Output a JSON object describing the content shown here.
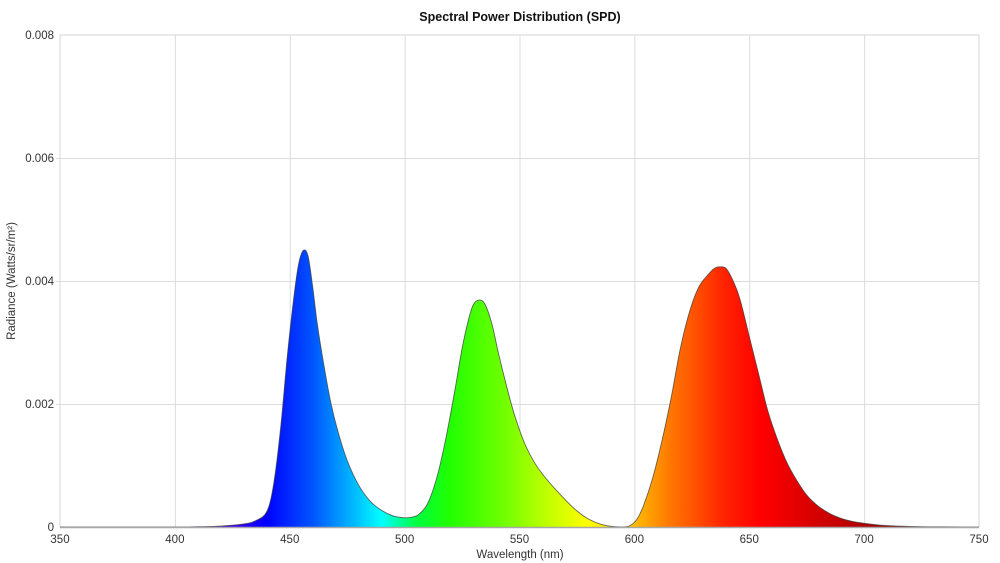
{
  "chart_data": {
    "type": "area",
    "title": "Spectral Power Distribution (SPD)",
    "xlabel": "Wavelength (nm)",
    "ylabel": "Radiance (Watts/sr/m²)",
    "xlim": [
      350,
      750
    ],
    "ylim": [
      0,
      0.008
    ],
    "xticks": [
      350,
      400,
      450,
      500,
      550,
      600,
      650,
      700,
      750
    ],
    "xtick_labels": [
      "350",
      "400",
      "450",
      "500",
      "550",
      "600",
      "650",
      "700",
      "750"
    ],
    "yticks": [
      0,
      0.002,
      0.004,
      0.006,
      0.008
    ],
    "ytick_labels": [
      "0",
      "0.002",
      "0.004",
      "0.006",
      "0.008"
    ],
    "grid": true,
    "legend": null,
    "fill": "visible-spectrum gradient under curve",
    "series": [
      {
        "name": "SPD",
        "x": [
          350,
          400,
          410,
          420,
          430,
          435,
          440,
          443,
          446,
          449,
          452,
          454,
          456,
          458,
          460,
          462,
          465,
          468,
          471,
          475,
          480,
          485,
          490,
          495,
          500,
          503,
          506,
          510,
          514,
          518,
          522,
          525,
          528,
          530,
          532.5,
          535,
          538,
          541,
          545,
          548,
          552,
          556,
          560,
          565,
          570,
          575,
          580,
          585,
          590,
          595,
          598,
          601,
          604,
          608,
          612,
          616,
          620,
          624,
          628,
          632,
          635,
          637.5,
          640,
          643,
          646,
          650,
          654,
          658,
          662,
          666,
          670,
          675,
          680,
          685,
          690,
          695,
          700,
          707,
          715,
          725,
          735,
          750
        ],
        "y": [
          0,
          0,
          4e-06,
          1.5e-05,
          5e-05,
          0.0001,
          0.00025,
          0.0007,
          0.0016,
          0.0028,
          0.0038,
          0.0043,
          0.0045,
          0.0044,
          0.0039,
          0.0033,
          0.0026,
          0.002,
          0.00155,
          0.00108,
          0.00068,
          0.00042,
          0.00027,
          0.00018,
          0.00015,
          0.00016,
          0.0002,
          0.00038,
          0.0008,
          0.00145,
          0.00225,
          0.0029,
          0.0034,
          0.00362,
          0.00369,
          0.00362,
          0.0033,
          0.0028,
          0.0022,
          0.0018,
          0.00138,
          0.00108,
          0.00086,
          0.00064,
          0.00044,
          0.00026,
          0.00013,
          5e-05,
          1e-05,
          0.0,
          2e-05,
          0.00012,
          0.00035,
          0.0008,
          0.0014,
          0.0021,
          0.0029,
          0.0035,
          0.0039,
          0.0041,
          0.00421,
          0.00423,
          0.0042,
          0.004,
          0.0037,
          0.0031,
          0.0025,
          0.0019,
          0.00145,
          0.00108,
          0.0008,
          0.00052,
          0.00034,
          0.00022,
          0.00014,
          9e-05,
          6e-05,
          3e-05,
          1.5e-05,
          5e-06,
          2e-06,
          0
        ]
      }
    ],
    "annotations": {
      "peaks": [
        {
          "wavelength": 456,
          "value": 0.0045,
          "color": "blue"
        },
        {
          "wavelength": 532.5,
          "value": 0.00369,
          "color": "green"
        },
        {
          "wavelength": 637.5,
          "value": 0.00423,
          "color": "red"
        }
      ]
    }
  },
  "spectrum_stops": [
    {
      "nm": 380,
      "color": "#61006a"
    },
    {
      "nm": 420,
      "color": "#5a00ff"
    },
    {
      "nm": 440,
      "color": "#0000ff"
    },
    {
      "nm": 460,
      "color": "#0055ff"
    },
    {
      "nm": 475,
      "color": "#00aaff"
    },
    {
      "nm": 490,
      "color": "#00ffff"
    },
    {
      "nm": 505,
      "color": "#00ff40"
    },
    {
      "nm": 520,
      "color": "#22ff00"
    },
    {
      "nm": 545,
      "color": "#77ff00"
    },
    {
      "nm": 565,
      "color": "#ccff00"
    },
    {
      "nm": 580,
      "color": "#ffff00"
    },
    {
      "nm": 600,
      "color": "#ffbb00"
    },
    {
      "nm": 615,
      "color": "#ff7a00"
    },
    {
      "nm": 640,
      "color": "#ff2000"
    },
    {
      "nm": 655,
      "color": "#ff0000"
    },
    {
      "nm": 700,
      "color": "#b00000"
    },
    {
      "nm": 750,
      "color": "#700000"
    }
  ]
}
